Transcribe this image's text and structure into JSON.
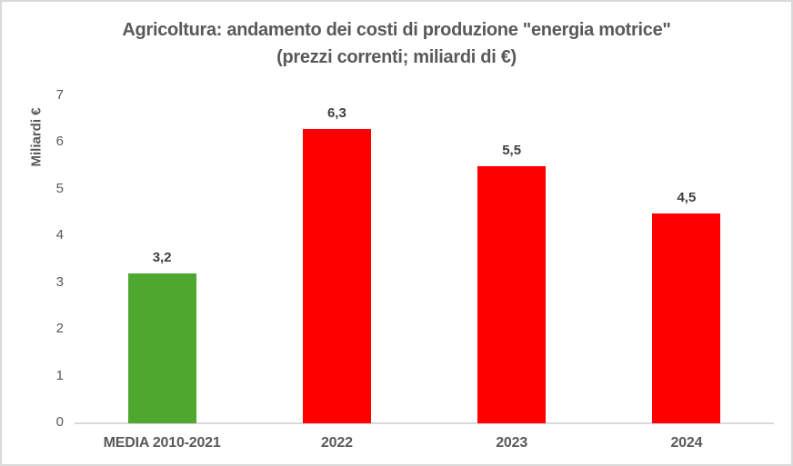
{
  "chart_data": {
    "type": "bar",
    "title": "Agricoltura: andamento dei costi di produzione \"energia motrice\"",
    "subtitle": "(prezzi correnti; miliardi di €)",
    "ylabel": "Miliardi €",
    "xlabel": "",
    "categories": [
      "MEDIA 2010-2021",
      "2022",
      "2023",
      "2024"
    ],
    "values": [
      3.2,
      6.3,
      5.5,
      4.5
    ],
    "value_labels": [
      "3,2",
      "6,3",
      "5,5",
      "4,5"
    ],
    "bar_colors": [
      "#4EA72E",
      "#FF0000",
      "#FF0000",
      "#FF0000"
    ],
    "ylim": [
      0,
      7
    ],
    "yticks": [
      0,
      1,
      2,
      3,
      4,
      5,
      6,
      7
    ],
    "grid": false,
    "legend": "none",
    "colors": {
      "text": "#595959",
      "data_label": "#404040",
      "axis_line": "#D9D9D9",
      "border": "#D9D9D9",
      "highlight_green": "#4EA72E",
      "series_red": "#FF0000"
    }
  }
}
